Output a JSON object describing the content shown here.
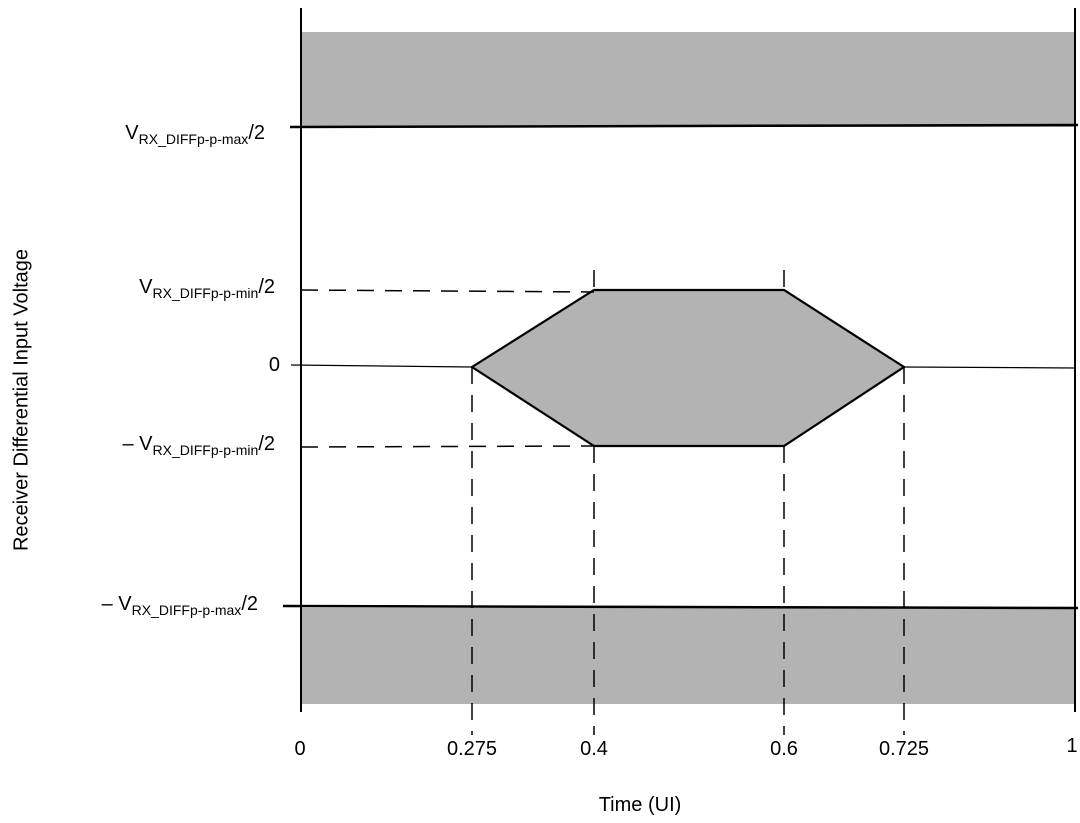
{
  "diagram": {
    "y_axis_title": "Receiver Differential Input Voltage",
    "x_axis_title": "Time (UI)",
    "y_labels": {
      "vmax_pos": {
        "prefix": "",
        "main": "V",
        "sub": "RX_DIFFp-p-max",
        "suffix": "/2"
      },
      "vmin_pos": {
        "prefix": "",
        "main": "V",
        "sub": "RX_DIFFp-p-min",
        "suffix": "/2"
      },
      "zero": "0",
      "vmin_neg": {
        "prefix": "– ",
        "main": "V",
        "sub": "RX_DIFFp-p-min",
        "suffix": "/2"
      },
      "vmax_neg": {
        "prefix": "– ",
        "main": "V",
        "sub": "RX_DIFFp-p-max",
        "suffix": "/2"
      }
    },
    "x_ticks": [
      "0",
      "0.275",
      "0.4",
      "0.6",
      "0.725",
      "1"
    ],
    "eye_mask": {
      "time_points_ui": [
        0.275,
        0.4,
        0.6,
        0.725
      ],
      "fill_color": "#b3b3b3"
    },
    "colors": {
      "line": "#000000",
      "fill": "#b3b3b3",
      "background": "#ffffff"
    }
  }
}
